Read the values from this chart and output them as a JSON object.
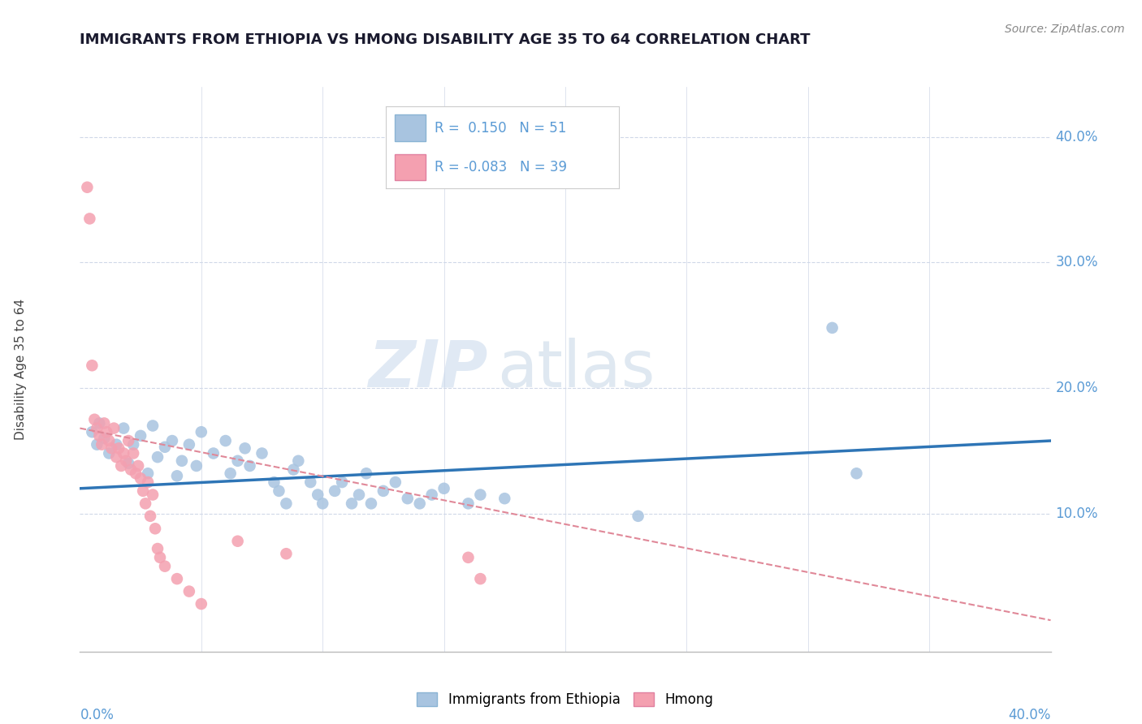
{
  "title": "IMMIGRANTS FROM ETHIOPIA VS HMONG DISABILITY AGE 35 TO 64 CORRELATION CHART",
  "source": "Source: ZipAtlas.com",
  "ylabel": "Disability Age 35 to 64",
  "ytick_labels": [
    "10.0%",
    "20.0%",
    "30.0%",
    "40.0%"
  ],
  "ytick_values": [
    0.1,
    0.2,
    0.3,
    0.4
  ],
  "xlim": [
    0.0,
    0.4
  ],
  "ylim": [
    -0.01,
    0.44
  ],
  "watermark_zip": "ZIP",
  "watermark_atlas": "atlas",
  "legend_ethiopia": {
    "R": 0.15,
    "N": 51,
    "color": "#a8c4e0"
  },
  "legend_hmong": {
    "R": -0.083,
    "N": 39,
    "color": "#f4a0b0"
  },
  "ethiopia_scatter": [
    [
      0.005,
      0.165
    ],
    [
      0.007,
      0.155
    ],
    [
      0.008,
      0.172
    ],
    [
      0.01,
      0.16
    ],
    [
      0.012,
      0.148
    ],
    [
      0.015,
      0.155
    ],
    [
      0.018,
      0.168
    ],
    [
      0.02,
      0.14
    ],
    [
      0.022,
      0.155
    ],
    [
      0.025,
      0.162
    ],
    [
      0.028,
      0.132
    ],
    [
      0.03,
      0.17
    ],
    [
      0.032,
      0.145
    ],
    [
      0.035,
      0.153
    ],
    [
      0.038,
      0.158
    ],
    [
      0.04,
      0.13
    ],
    [
      0.042,
      0.142
    ],
    [
      0.045,
      0.155
    ],
    [
      0.048,
      0.138
    ],
    [
      0.05,
      0.165
    ],
    [
      0.055,
      0.148
    ],
    [
      0.06,
      0.158
    ],
    [
      0.062,
      0.132
    ],
    [
      0.065,
      0.142
    ],
    [
      0.068,
      0.152
    ],
    [
      0.07,
      0.138
    ],
    [
      0.075,
      0.148
    ],
    [
      0.08,
      0.125
    ],
    [
      0.082,
      0.118
    ],
    [
      0.085,
      0.108
    ],
    [
      0.088,
      0.135
    ],
    [
      0.09,
      0.142
    ],
    [
      0.095,
      0.125
    ],
    [
      0.098,
      0.115
    ],
    [
      0.1,
      0.108
    ],
    [
      0.105,
      0.118
    ],
    [
      0.108,
      0.125
    ],
    [
      0.112,
      0.108
    ],
    [
      0.115,
      0.115
    ],
    [
      0.118,
      0.132
    ],
    [
      0.12,
      0.108
    ],
    [
      0.125,
      0.118
    ],
    [
      0.13,
      0.125
    ],
    [
      0.135,
      0.112
    ],
    [
      0.14,
      0.108
    ],
    [
      0.145,
      0.115
    ],
    [
      0.15,
      0.12
    ],
    [
      0.16,
      0.108
    ],
    [
      0.165,
      0.115
    ],
    [
      0.175,
      0.112
    ],
    [
      0.23,
      0.098
    ],
    [
      0.31,
      0.248
    ],
    [
      0.32,
      0.132
    ]
  ],
  "hmong_scatter": [
    [
      0.003,
      0.36
    ],
    [
      0.004,
      0.335
    ],
    [
      0.005,
      0.218
    ],
    [
      0.006,
      0.175
    ],
    [
      0.007,
      0.168
    ],
    [
      0.008,
      0.162
    ],
    [
      0.009,
      0.155
    ],
    [
      0.01,
      0.172
    ],
    [
      0.011,
      0.165
    ],
    [
      0.012,
      0.158
    ],
    [
      0.013,
      0.152
    ],
    [
      0.014,
      0.168
    ],
    [
      0.015,
      0.145
    ],
    [
      0.016,
      0.152
    ],
    [
      0.017,
      0.138
    ],
    [
      0.018,
      0.148
    ],
    [
      0.019,
      0.142
    ],
    [
      0.02,
      0.158
    ],
    [
      0.021,
      0.135
    ],
    [
      0.022,
      0.148
    ],
    [
      0.023,
      0.132
    ],
    [
      0.024,
      0.138
    ],
    [
      0.025,
      0.128
    ],
    [
      0.026,
      0.118
    ],
    [
      0.027,
      0.108
    ],
    [
      0.028,
      0.125
    ],
    [
      0.029,
      0.098
    ],
    [
      0.03,
      0.115
    ],
    [
      0.031,
      0.088
    ],
    [
      0.032,
      0.072
    ],
    [
      0.033,
      0.065
    ],
    [
      0.035,
      0.058
    ],
    [
      0.04,
      0.048
    ],
    [
      0.045,
      0.038
    ],
    [
      0.05,
      0.028
    ],
    [
      0.065,
      0.078
    ],
    [
      0.085,
      0.068
    ],
    [
      0.16,
      0.065
    ],
    [
      0.165,
      0.048
    ]
  ],
  "ethiopia_line_x": [
    0.0,
    0.4
  ],
  "ethiopia_line_y": [
    0.12,
    0.158
  ],
  "hmong_line_x": [
    0.0,
    0.4
  ],
  "hmong_line_y": [
    0.168,
    0.015
  ],
  "axis_color": "#5b9bd5",
  "grid_color": "#d0d8e8",
  "ethiopia_color": "#a8c4e0",
  "hmong_color": "#f4a0b0",
  "trendline_ethiopia_color": "#2e75b6",
  "trendline_hmong_color": "#e08898"
}
